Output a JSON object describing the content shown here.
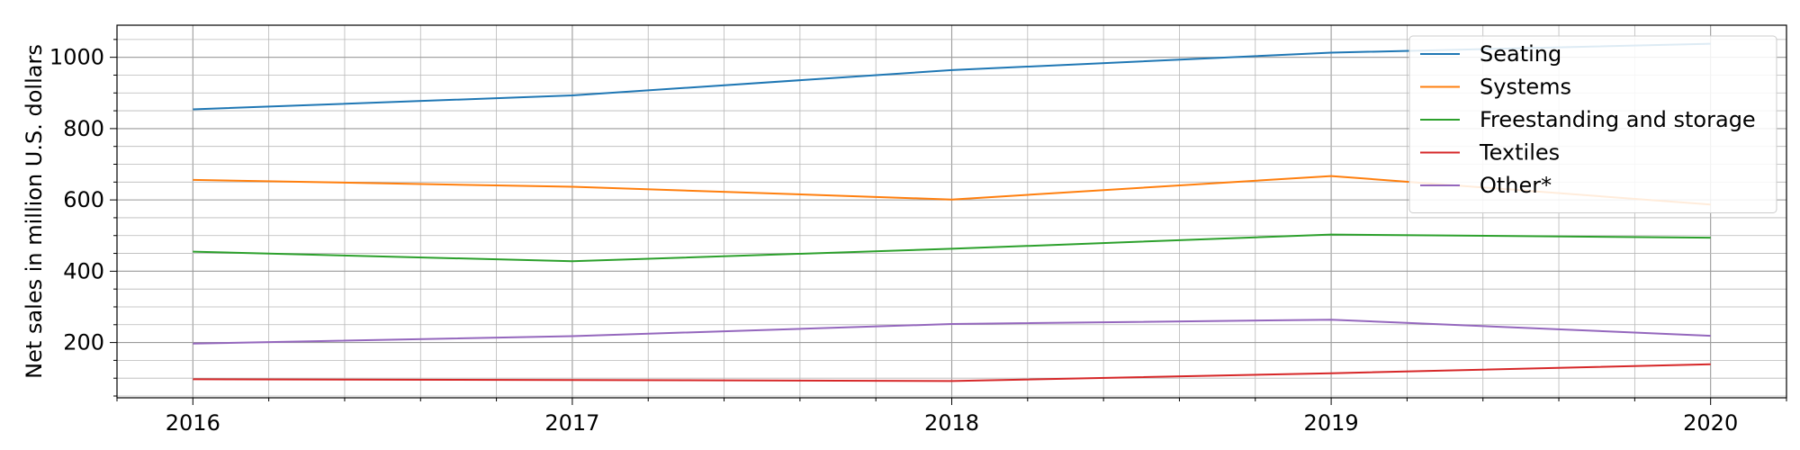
{
  "chart_data": {
    "type": "line",
    "title": "",
    "xlabel": "",
    "ylabel": "Net sales in million U.S. dollars",
    "x": [
      2016,
      2017,
      2018,
      2019,
      2020
    ],
    "xlim": [
      2015.8,
      2020.2
    ],
    "ylim": [
      45,
      1090
    ],
    "xticks": [
      "2016",
      "2017",
      "2018",
      "2019",
      "2020"
    ],
    "yticks": [
      "200",
      "400",
      "600",
      "800",
      "1000"
    ],
    "grid": "major and minor",
    "legend_position": "top-right",
    "series": [
      {
        "name": "Seating",
        "color": "#1f77b4",
        "values": [
          854,
          893,
          964,
          1013,
          1038
        ]
      },
      {
        "name": "Systems",
        "color": "#ff7f0e",
        "values": [
          656,
          637,
          601,
          667,
          587
        ]
      },
      {
        "name": "Freestanding and storage",
        "color": "#2ca02c",
        "values": [
          455,
          428,
          463,
          503,
          494
        ]
      },
      {
        "name": "Textiles",
        "color": "#d62728",
        "values": [
          97,
          95,
          92,
          114,
          139
        ]
      },
      {
        "name": "Other*",
        "color": "#9467bd",
        "values": [
          197,
          218,
          252,
          264,
          219
        ]
      }
    ]
  }
}
